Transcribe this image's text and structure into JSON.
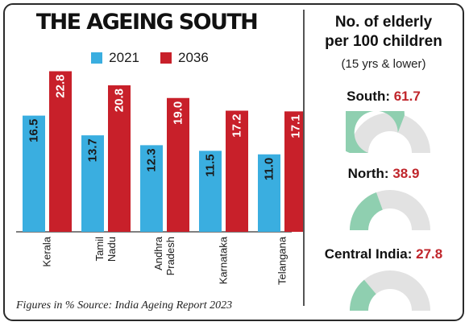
{
  "title": "THE AGEING SOUTH",
  "legend": {
    "labels": [
      "2021",
      "2036"
    ],
    "colors": [
      "#3aaee0",
      "#c8202a"
    ]
  },
  "chart_data": [
    {
      "type": "bar",
      "categories": [
        "Kerala",
        "Tamil Nadu",
        "Andhra Pradesh",
        "Karnataka",
        "Telangana"
      ],
      "category_lines": [
        [
          "Kerala"
        ],
        [
          "Tamil",
          "Nadu"
        ],
        [
          "Andhra",
          "Pradesh"
        ],
        [
          "Karnataka"
        ],
        [
          "Telangana"
        ]
      ],
      "series": [
        {
          "name": "2021",
          "values": [
            16.5,
            13.7,
            12.3,
            11.5,
            11.0
          ],
          "labels": [
            "16.5",
            "13.7",
            "12.3",
            "11.5",
            "11.0"
          ]
        },
        {
          "name": "2036",
          "values": [
            22.8,
            20.8,
            19.0,
            17.2,
            17.1
          ],
          "labels": [
            "22.8",
            "20.8",
            "19.0",
            "17.2",
            "17.1"
          ]
        }
      ],
      "ylim": [
        0,
        24
      ],
      "grid": false
    },
    {
      "type": "gauge",
      "title": "No. of elderly per 100 children",
      "subtitle": "(15 yrs & lower)",
      "max": 100,
      "regions": [
        {
          "name": "South",
          "value": 61.7,
          "value_label": "61.7"
        },
        {
          "name": "North",
          "value": 38.9,
          "value_label": "38.9"
        },
        {
          "name": "Central India",
          "value": 27.8,
          "value_label": "27.8"
        }
      ],
      "fill_color": "#8fcfb0",
      "track_color": "#e2e2e2"
    }
  ],
  "side": {
    "title_line1": "No. of elderly",
    "title_line2": "per 100 children",
    "subtitle": "(15 yrs & lower)"
  },
  "footer": {
    "figures": "Figures in %",
    "source": "Source: India Ageing Report 2023"
  }
}
